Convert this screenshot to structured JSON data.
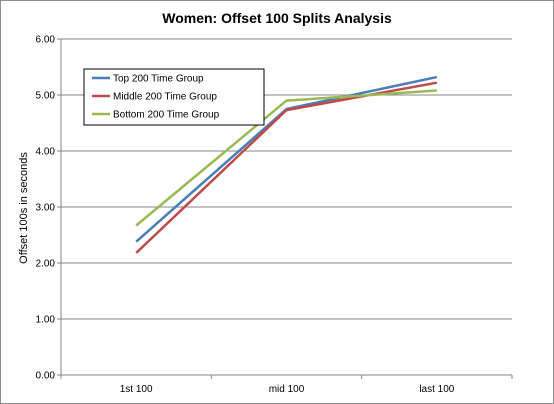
{
  "chart_data": {
    "type": "line",
    "title": "Women: Offset 100 Splits Analysis",
    "xlabel": "",
    "ylabel": "Offset 100s in seconds",
    "categories": [
      "1st 100",
      "mid 100",
      "last 100"
    ],
    "ylim": [
      0,
      6
    ],
    "yticks": [
      "0.00",
      "1.00",
      "2.00",
      "3.00",
      "4.00",
      "5.00",
      "6.00"
    ],
    "grid": true,
    "legend_position": "top-left",
    "series": [
      {
        "name": "Top 200 Time Group",
        "color": "#4a7ebb",
        "values": [
          2.38,
          4.75,
          5.32
        ]
      },
      {
        "name": "Middle 200 Time Group",
        "color": "#be4b48",
        "values": [
          2.18,
          4.73,
          5.22
        ]
      },
      {
        "name": "Bottom 200 Time Group",
        "color": "#98b954",
        "values": [
          2.67,
          4.9,
          5.08
        ]
      }
    ]
  }
}
